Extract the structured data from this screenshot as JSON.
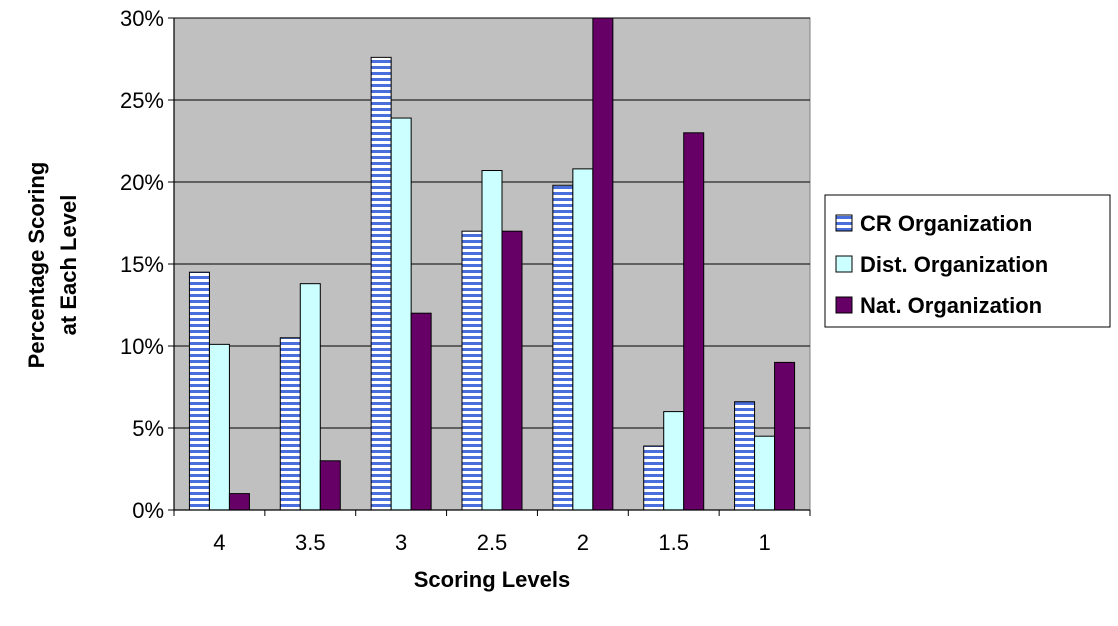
{
  "chart_data": {
    "type": "bar",
    "title": "",
    "xlabel": "Scoring Levels",
    "ylabel_lines": [
      "Percentage Scoring",
      "at Each Level"
    ],
    "categories": [
      "4",
      "3.5",
      "3",
      "2.5",
      "2",
      "1.5",
      "1"
    ],
    "ylim": [
      0,
      30
    ],
    "yticks": [
      0,
      5,
      10,
      15,
      20,
      25,
      30
    ],
    "ytick_labels": [
      "0%",
      "5%",
      "10%",
      "15%",
      "20%",
      "25%",
      "30%"
    ],
    "grid": true,
    "plot_background": "#c0c0c0",
    "legend_position": "right",
    "series": [
      {
        "name": "CR Organization",
        "values": [
          14.5,
          10.5,
          27.6,
          17.0,
          19.8,
          3.9,
          6.6
        ],
        "color": "#4a6fdc",
        "pattern": "horizontal-stripes"
      },
      {
        "name": "Dist. Organization",
        "values": [
          10.1,
          13.8,
          23.9,
          20.7,
          20.8,
          6.0,
          4.5
        ],
        "color": "#ccffff",
        "pattern": "solid"
      },
      {
        "name": "Nat. Organization",
        "values": [
          1.0,
          3.0,
          12.0,
          17.0,
          30.2,
          23.0,
          9.0
        ],
        "color": "#660066",
        "pattern": "solid"
      }
    ]
  }
}
